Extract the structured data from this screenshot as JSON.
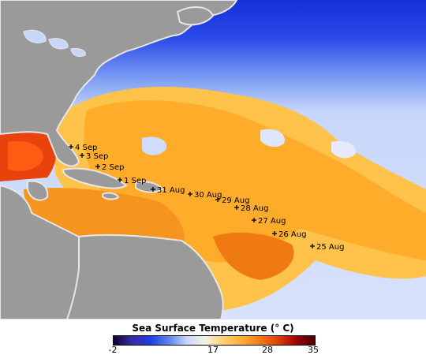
{
  "map": {
    "ocean_scale": [
      "#140032",
      "#3a2aa8",
      "#1d3fe0",
      "#5a82f0",
      "#c8d6fa",
      "#f4f0e6",
      "#ffd070",
      "#ffb030",
      "#f27a14",
      "#e0400a",
      "#a00000",
      "#460000"
    ],
    "land_color": "#9a9a9a",
    "land_outline_color": "#e6e6e6",
    "track_color": "#000000",
    "track_points": [
      {
        "label": "4 Sep"
      },
      {
        "label": "3 Sep"
      },
      {
        "label": "2 Sep"
      },
      {
        "label": "1 Sep"
      },
      {
        "label": "31 Aug"
      },
      {
        "label": "30 Aug"
      },
      {
        "label": "29 Aug"
      },
      {
        "label": "28 Aug"
      },
      {
        "label": "27 Aug"
      },
      {
        "label": "26 Aug"
      },
      {
        "label": "25 Aug"
      }
    ]
  },
  "legend": {
    "title": "Sea Surface Temperature (° C)",
    "colors": [
      "#140032",
      "#3a2aa8",
      "#1d3fe0",
      "#5a82f0",
      "#c8d6fa",
      "#f4f0e6",
      "#ffd070",
      "#ffb030",
      "#f27a14",
      "#e0400a",
      "#a00000",
      "#460000"
    ],
    "ticks": [
      "-2",
      "17",
      "28",
      "35"
    ]
  }
}
